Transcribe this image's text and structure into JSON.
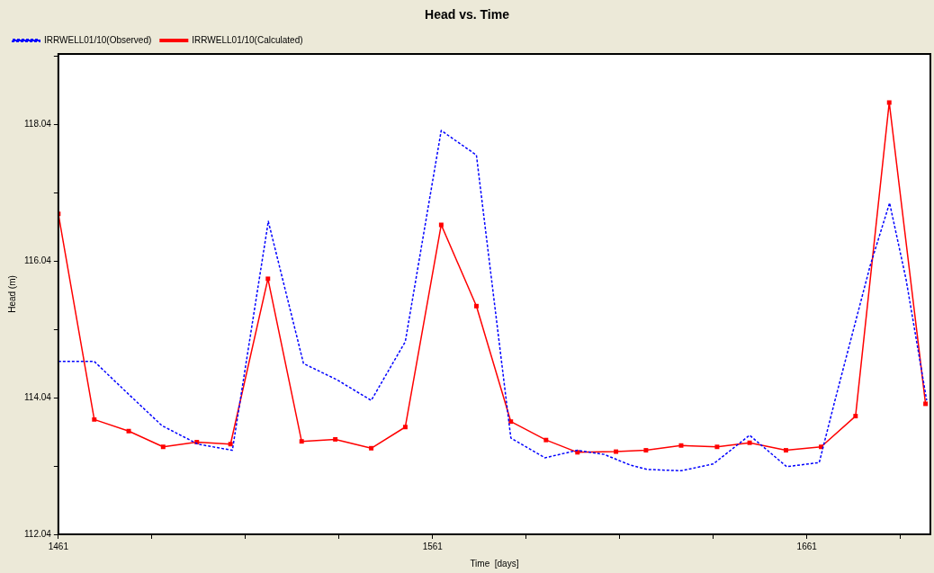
{
  "chart_data": {
    "type": "line",
    "title": "Head vs. Time",
    "xlabel": "Time  [days]",
    "ylabel": "Head (m)",
    "xlim": [
      1461,
      1694
    ],
    "ylim": [
      112.04,
      119.07
    ],
    "xticks": [
      1461,
      {
        "value": 1486,
        "label": null
      },
      {
        "value": 1511,
        "label": null
      },
      {
        "value": 1536,
        "label": null
      },
      1561,
      {
        "value": 1586,
        "label": null
      },
      {
        "value": 1611,
        "label": null
      },
      {
        "value": 1636,
        "label": null
      },
      1661,
      {
        "value": 1686,
        "label": null
      }
    ],
    "yticks": [
      112.04,
      {
        "value": 113.04,
        "label": null
      },
      114.04,
      {
        "value": 115.04,
        "label": null
      },
      116.04,
      {
        "value": 117.04,
        "label": null
      },
      118.04,
      {
        "value": 119.04,
        "label": null
      }
    ],
    "grid": false,
    "legend": "top left",
    "series": [
      {
        "name": "IRRWELL01/10(Observed)",
        "color": "#0000ff",
        "line_style": "dashed",
        "marker": "none",
        "x": [
          1461,
          1470.6,
          1479.2,
          1488.7,
          1498.3,
          1507.5,
          1517.1,
          1526.5,
          1535.5,
          1544.6,
          1553.7,
          1563.3,
          1572.7,
          1581.9,
          1591,
          1599.7,
          1606.8,
          1614,
          1618.3,
          1627.4,
          1636,
          1645.7,
          1655.6,
          1664.3,
          1668.5,
          1677.9,
          1683.1,
          1687.5,
          1693
        ],
        "values": [
          114.57,
          114.57,
          114.12,
          113.63,
          113.36,
          113.27,
          116.62,
          114.54,
          114.3,
          114.0,
          114.86,
          117.95,
          117.59,
          113.45,
          113.16,
          113.27,
          113.21,
          113.05,
          112.99,
          112.97,
          113.07,
          113.49,
          113.03,
          113.09,
          114.0,
          115.97,
          116.89,
          115.77,
          114.0
        ]
      },
      {
        "name": "IRRWELL01/10(Calculated)",
        "color": "#ff0000",
        "line_style": "solid",
        "marker": "square",
        "x": [
          1461,
          1470.6,
          1479.8,
          1489,
          1498,
          1507,
          1517,
          1526,
          1535,
          1544.6,
          1553.7,
          1563.3,
          1572.7,
          1581.9,
          1591.3,
          1599.7,
          1610,
          1618,
          1627.4,
          1637,
          1645.7,
          1655.4,
          1664.8,
          1674,
          1683,
          1692.7
        ],
        "values": [
          116.73,
          113.72,
          113.55,
          113.32,
          113.39,
          113.36,
          115.78,
          113.4,
          113.43,
          113.3,
          113.61,
          116.57,
          115.38,
          113.69,
          113.42,
          113.24,
          113.25,
          113.27,
          113.34,
          113.32,
          113.38,
          113.27,
          113.32,
          113.77,
          118.36,
          113.95
        ]
      }
    ]
  }
}
